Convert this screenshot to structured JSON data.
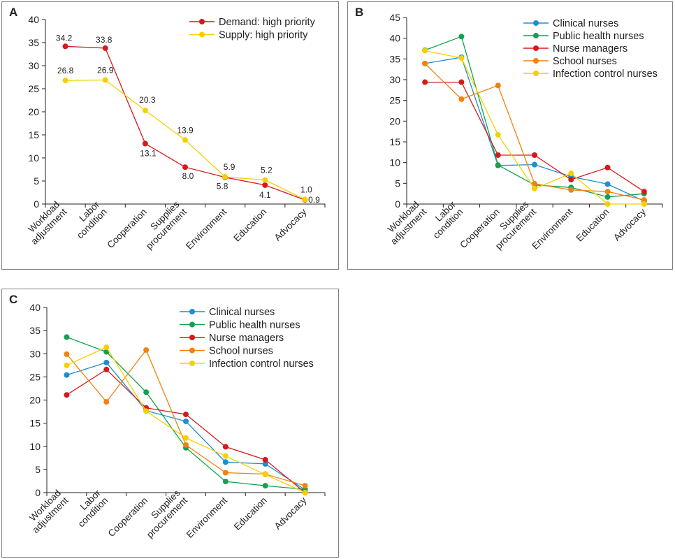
{
  "chart_data": [
    {
      "panel": "A",
      "type": "line",
      "categories": [
        [
          "Workload",
          "adjustment"
        ],
        [
          "Labor",
          "condition"
        ],
        [
          "Cooperation"
        ],
        [
          "Supplies",
          "procurement"
        ],
        [
          "Environment"
        ],
        [
          "Education"
        ],
        [
          "Advocacy"
        ]
      ],
      "ylim": [
        0,
        40
      ],
      "yticks": [
        0,
        5,
        10,
        15,
        20,
        25,
        30,
        35,
        40
      ],
      "grid": false,
      "legend_position": "top-right",
      "series": [
        {
          "name": "Demand: high priority",
          "color": "#d7191c",
          "values": [
            34.2,
            33.8,
            13.1,
            8.0,
            5.8,
            4.1,
            0.9
          ],
          "labels": [
            "34.2",
            "33.8",
            "13.1",
            "8.0",
            "5.8",
            "4.1",
            "0.9"
          ]
        },
        {
          "name": "Supply: high priority",
          "color": "#f5d000",
          "values": [
            26.8,
            26.9,
            20.3,
            13.9,
            5.9,
            5.2,
            1.0
          ],
          "labels": [
            "26.8",
            "26.9",
            "20.3",
            "13.9",
            "5.9",
            "5.2",
            "1.0"
          ]
        }
      ]
    },
    {
      "panel": "B",
      "type": "line",
      "categories": [
        [
          "Workload",
          "adjustment"
        ],
        [
          "Labor",
          "condition"
        ],
        [
          "Cooperation"
        ],
        [
          "Supplies",
          "procurement"
        ],
        [
          "Environment"
        ],
        [
          "Education"
        ],
        [
          "Advocacy"
        ]
      ],
      "ylim": [
        0,
        45
      ],
      "yticks": [
        0,
        5,
        10,
        15,
        20,
        25,
        30,
        35,
        40,
        45
      ],
      "grid": false,
      "legend_position": "top-right",
      "series": [
        {
          "name": "Clinical nurses",
          "color": "#1b8fd0",
          "values": [
            33.9,
            35.4,
            9.3,
            9.5,
            6.6,
            4.8,
            0.7
          ]
        },
        {
          "name": "Public health nurses",
          "color": "#12a150",
          "values": [
            37.1,
            40.4,
            9.4,
            4.6,
            4.0,
            1.7,
            2.5
          ]
        },
        {
          "name": "Nurse managers",
          "color": "#d7191c",
          "values": [
            29.4,
            29.4,
            11.8,
            11.8,
            5.9,
            8.8,
            3.0
          ]
        },
        {
          "name": "School nurses",
          "color": "#f0820f",
          "values": [
            33.9,
            25.3,
            28.6,
            4.9,
            3.4,
            3.0,
            1.0
          ]
        },
        {
          "name": "Infection control nurses",
          "color": "#f5d000",
          "values": [
            37.0,
            35.2,
            16.7,
            3.7,
            7.4,
            0.0,
            0.0
          ]
        }
      ]
    },
    {
      "panel": "C",
      "type": "line",
      "categories": [
        [
          "Workload",
          "adjustment"
        ],
        [
          "Labor",
          "condition"
        ],
        [
          "Cooperation"
        ],
        [
          "Supplies",
          "procurement"
        ],
        [
          "Environment"
        ],
        [
          "Education"
        ],
        [
          "Advocacy"
        ]
      ],
      "ylim": [
        0,
        40
      ],
      "yticks": [
        0,
        5,
        10,
        15,
        20,
        25,
        30,
        35,
        40
      ],
      "grid": false,
      "legend_position": "top-right",
      "series": [
        {
          "name": "Clinical nurses",
          "color": "#1b8fd0",
          "values": [
            25.4,
            28.1,
            17.7,
            15.4,
            6.6,
            6.2,
            0.6
          ]
        },
        {
          "name": "Public health nurses",
          "color": "#12a150",
          "values": [
            33.6,
            30.4,
            21.7,
            9.7,
            2.4,
            1.5,
            0.7
          ]
        },
        {
          "name": "Nurse managers",
          "color": "#d7191c",
          "values": [
            21.1,
            26.6,
            18.3,
            16.9,
            9.9,
            7.1,
            0.0
          ]
        },
        {
          "name": "School nurses",
          "color": "#f0820f",
          "values": [
            29.9,
            19.6,
            30.8,
            10.3,
            4.3,
            4.0,
            1.5
          ]
        },
        {
          "name": "Infection control nurses",
          "color": "#f5d000",
          "values": [
            27.5,
            31.4,
            17.6,
            11.8,
            7.9,
            3.9,
            0.0
          ]
        }
      ]
    }
  ]
}
